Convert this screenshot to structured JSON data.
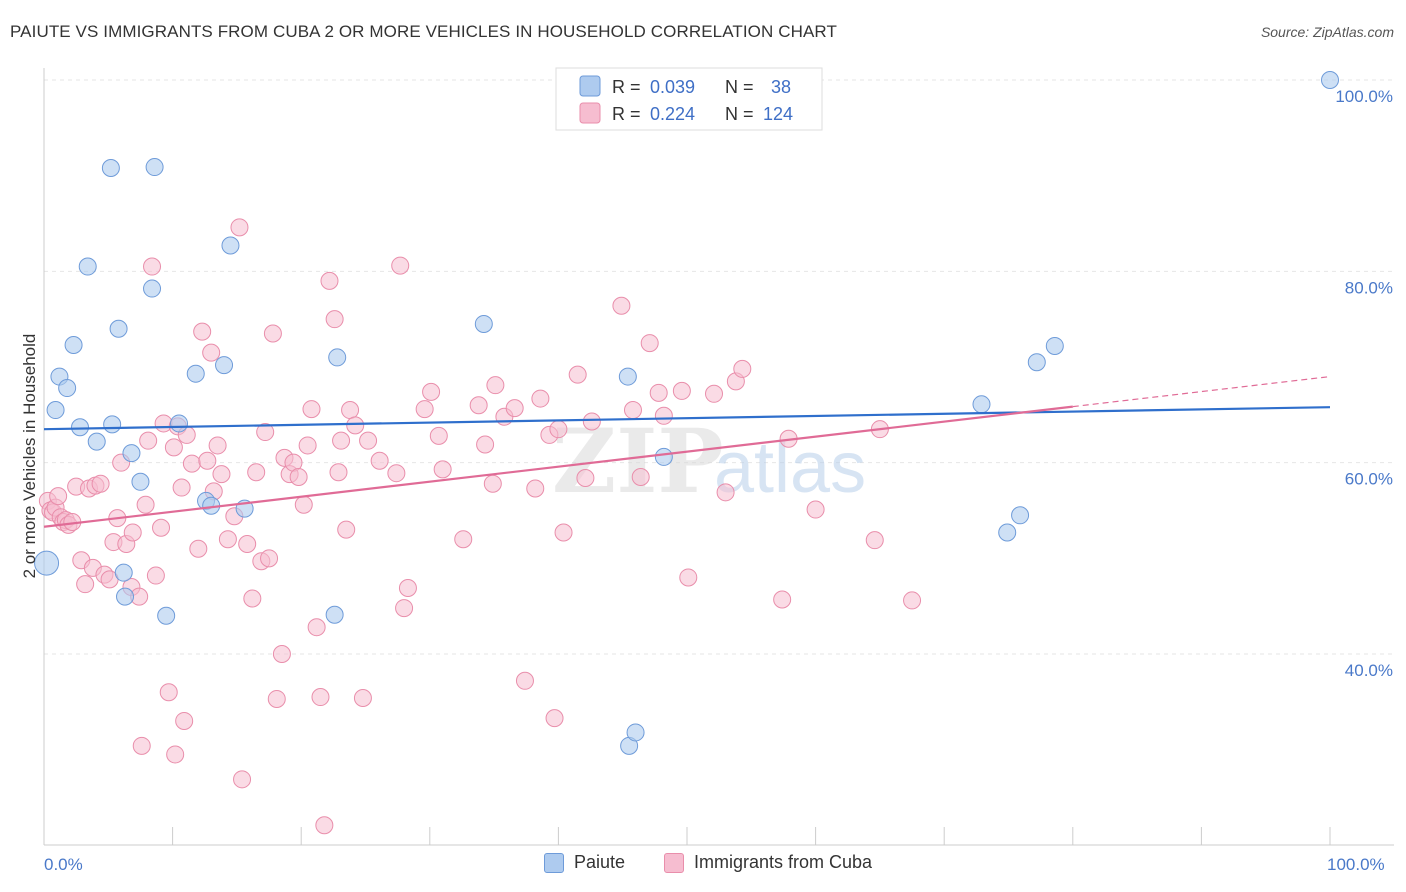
{
  "header": {
    "title": "PAIUTE VS IMMIGRANTS FROM CUBA 2 OR MORE VEHICLES IN HOUSEHOLD CORRELATION CHART",
    "source": "Source: ZipAtlas.com"
  },
  "watermark": {
    "part1": "ZIP",
    "part2": "atlas"
  },
  "chart_data": {
    "type": "scatter",
    "title": "PAIUTE VS IMMIGRANTS FROM CUBA 2 OR MORE VEHICLES IN HOUSEHOLD CORRELATION CHART",
    "xlabel": "",
    "ylabel": "2 or more Vehicles in Household",
    "xlim": [
      0,
      100
    ],
    "ylim": [
      20,
      102
    ],
    "x_tick_labels": {
      "min": "0.0%",
      "max": "100.0%"
    },
    "y_ticks": [
      40,
      60,
      80,
      100
    ],
    "y_tick_labels": [
      "40.0%",
      "60.0%",
      "80.0%",
      "100.0%"
    ],
    "grid": true,
    "legend": {
      "placement": "top-center",
      "rows": [
        {
          "r_label": "R =",
          "r_value": "0.039",
          "n_label": "N =",
          "n_value": "38"
        },
        {
          "r_label": "R =",
          "r_value": "0.224",
          "n_label": "N =",
          "n_value": "124"
        }
      ]
    },
    "series": [
      {
        "name": "Paiute",
        "fill": "#aecbef",
        "stroke": "#6e9bd9",
        "line_color": "#2f6fcc",
        "trend": {
          "x0": 0,
          "y0": 63.5,
          "x1": 100,
          "y1": 65.8,
          "dashed_from": null
        },
        "points": [
          [
            0.2,
            49.5
          ],
          [
            0.9,
            65.5
          ],
          [
            1.2,
            69.0
          ],
          [
            1.8,
            67.8
          ],
          [
            2.3,
            72.3
          ],
          [
            2.8,
            63.7
          ],
          [
            3.4,
            80.5
          ],
          [
            4.1,
            62.2
          ],
          [
            5.2,
            90.8
          ],
          [
            5.3,
            64.0
          ],
          [
            5.8,
            74.0
          ],
          [
            6.2,
            48.5
          ],
          [
            6.3,
            46.0
          ],
          [
            6.8,
            61.0
          ],
          [
            7.5,
            58.0
          ],
          [
            8.4,
            78.2
          ],
          [
            8.6,
            90.9
          ],
          [
            9.5,
            44.0
          ],
          [
            10.5,
            64.1
          ],
          [
            11.8,
            69.3
          ],
          [
            12.6,
            56.0
          ],
          [
            13.0,
            55.5
          ],
          [
            14.0,
            70.2
          ],
          [
            14.5,
            82.7
          ],
          [
            15.6,
            55.2
          ],
          [
            22.6,
            44.1
          ],
          [
            22.8,
            71.0
          ],
          [
            34.2,
            74.5
          ],
          [
            45.4,
            69.0
          ],
          [
            45.5,
            30.4
          ],
          [
            46.0,
            31.8
          ],
          [
            48.2,
            60.6
          ],
          [
            72.9,
            66.1
          ],
          [
            74.9,
            52.7
          ],
          [
            75.9,
            54.5
          ],
          [
            77.2,
            70.5
          ],
          [
            78.6,
            72.2
          ],
          [
            100.0,
            100.0
          ]
        ]
      },
      {
        "name": "Immigrants from Cuba",
        "fill": "#f6bdd0",
        "stroke": "#e98eab",
        "line_color": "#e06b96",
        "trend": {
          "x0": 0,
          "y0": 53.3,
          "x1": 100,
          "y1": 69.0,
          "dashed_from": 80
        },
        "points": [
          [
            0.3,
            56.0
          ],
          [
            0.5,
            55.0
          ],
          [
            0.7,
            54.8
          ],
          [
            0.9,
            55.3
          ],
          [
            1.1,
            56.5
          ],
          [
            1.3,
            54.3
          ],
          [
            1.5,
            53.8
          ],
          [
            1.7,
            54.0
          ],
          [
            1.9,
            53.5
          ],
          [
            2.2,
            53.8
          ],
          [
            2.5,
            57.5
          ],
          [
            2.9,
            49.8
          ],
          [
            3.2,
            47.3
          ],
          [
            3.5,
            57.3
          ],
          [
            3.8,
            49.0
          ],
          [
            4.0,
            57.6
          ],
          [
            4.4,
            57.8
          ],
          [
            4.7,
            48.3
          ],
          [
            5.1,
            47.8
          ],
          [
            5.4,
            51.7
          ],
          [
            5.7,
            54.2
          ],
          [
            6.0,
            60.0
          ],
          [
            6.4,
            51.5
          ],
          [
            6.8,
            47.0
          ],
          [
            6.9,
            52.7
          ],
          [
            7.4,
            46.0
          ],
          [
            7.6,
            30.4
          ],
          [
            7.9,
            55.6
          ],
          [
            8.1,
            62.3
          ],
          [
            8.4,
            80.5
          ],
          [
            8.7,
            48.2
          ],
          [
            9.1,
            53.2
          ],
          [
            9.3,
            64.1
          ],
          [
            9.7,
            36.0
          ],
          [
            10.1,
            61.6
          ],
          [
            10.2,
            29.5
          ],
          [
            10.4,
            63.8
          ],
          [
            10.7,
            57.4
          ],
          [
            10.9,
            33.0
          ],
          [
            11.1,
            62.9
          ],
          [
            11.5,
            59.9
          ],
          [
            12.0,
            51.0
          ],
          [
            12.3,
            73.7
          ],
          [
            12.7,
            60.2
          ],
          [
            13.0,
            71.5
          ],
          [
            13.2,
            57.0
          ],
          [
            13.5,
            61.8
          ],
          [
            13.8,
            58.8
          ],
          [
            14.3,
            52.0
          ],
          [
            14.8,
            54.4
          ],
          [
            15.2,
            84.6
          ],
          [
            15.4,
            26.9
          ],
          [
            15.8,
            51.5
          ],
          [
            16.2,
            45.8
          ],
          [
            16.5,
            59.0
          ],
          [
            16.9,
            49.7
          ],
          [
            17.2,
            63.2
          ],
          [
            17.5,
            50.0
          ],
          [
            17.8,
            73.5
          ],
          [
            18.1,
            35.3
          ],
          [
            18.5,
            40.0
          ],
          [
            18.7,
            60.5
          ],
          [
            19.1,
            58.8
          ],
          [
            19.4,
            60.0
          ],
          [
            19.8,
            58.5
          ],
          [
            20.2,
            55.6
          ],
          [
            20.5,
            61.8
          ],
          [
            20.8,
            65.6
          ],
          [
            21.2,
            42.8
          ],
          [
            21.5,
            35.5
          ],
          [
            21.8,
            22.1
          ],
          [
            22.2,
            79.0
          ],
          [
            22.6,
            75.0
          ],
          [
            22.9,
            59.0
          ],
          [
            23.1,
            62.3
          ],
          [
            23.5,
            53.0
          ],
          [
            23.8,
            65.5
          ],
          [
            24.2,
            63.9
          ],
          [
            24.8,
            35.4
          ],
          [
            25.2,
            62.3
          ],
          [
            26.1,
            60.2
          ],
          [
            27.4,
            58.9
          ],
          [
            27.7,
            80.6
          ],
          [
            28.0,
            44.8
          ],
          [
            28.3,
            46.9
          ],
          [
            29.6,
            65.6
          ],
          [
            30.1,
            67.4
          ],
          [
            30.7,
            62.8
          ],
          [
            31.0,
            59.3
          ],
          [
            32.6,
            52.0
          ],
          [
            33.8,
            66.0
          ],
          [
            34.3,
            61.9
          ],
          [
            34.9,
            57.8
          ],
          [
            35.1,
            68.1
          ],
          [
            35.8,
            64.8
          ],
          [
            36.6,
            65.7
          ],
          [
            37.4,
            37.2
          ],
          [
            38.2,
            57.3
          ],
          [
            38.6,
            66.7
          ],
          [
            39.3,
            62.9
          ],
          [
            39.7,
            33.3
          ],
          [
            40.0,
            63.5
          ],
          [
            40.4,
            52.7
          ],
          [
            41.5,
            69.2
          ],
          [
            42.1,
            58.4
          ],
          [
            42.6,
            64.3
          ],
          [
            44.9,
            76.4
          ],
          [
            45.8,
            65.5
          ],
          [
            46.4,
            58.5
          ],
          [
            47.1,
            72.5
          ],
          [
            47.8,
            67.3
          ],
          [
            48.2,
            64.9
          ],
          [
            49.6,
            67.5
          ],
          [
            50.1,
            48.0
          ],
          [
            52.1,
            67.2
          ],
          [
            53.0,
            56.9
          ],
          [
            53.8,
            68.5
          ],
          [
            54.3,
            69.8
          ],
          [
            57.4,
            45.7
          ],
          [
            57.9,
            62.5
          ],
          [
            60.0,
            55.1
          ],
          [
            64.6,
            51.9
          ],
          [
            65.0,
            63.5
          ],
          [
            67.5,
            45.6
          ]
        ]
      }
    ]
  },
  "bottom_legend": [
    {
      "label": "Paiute"
    },
    {
      "label": "Immigrants from Cuba"
    }
  ]
}
